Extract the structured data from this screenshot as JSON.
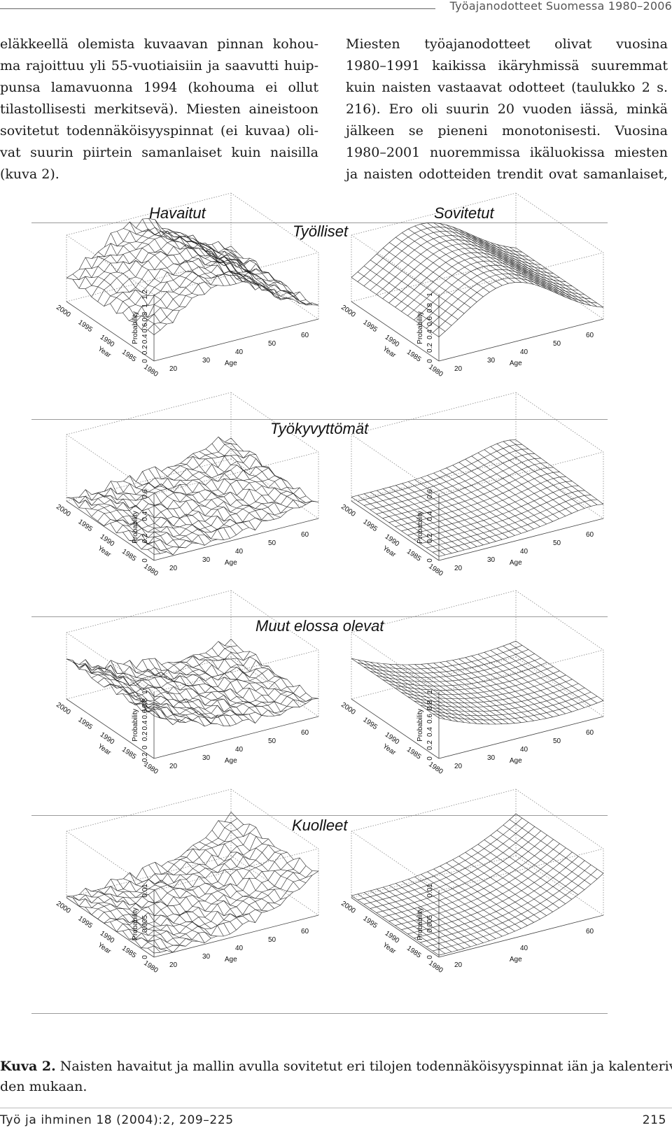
{
  "running_head": "Työajanodotteet Suomessa 1980–2006",
  "left_column": [
    "eläkkeellä olemista kuvaavan pinnan kohou-",
    "ma rajoittuu yli 55-vuotiaisiin ja saavutti huip-",
    "punsa lamavuonna 1994 (kohouma ei ollut",
    "tilastollisesti merkitsevä). Miesten aineistoon",
    "sovitetut todennäköisyyspinnat (ei kuvaa) oli-",
    "vat suurin piirtein samanlaiset kuin naisilla",
    "(kuva 2)."
  ],
  "right_column": [
    "Miesten työajanodotteet olivat vuosina",
    "1980–1991 kaikissa ikäryhmissä suuremmat",
    "kuin naisten vastaavat odotteet (taulukko 2 s.",
    "216). Ero oli suurin 20 vuoden iässä, minkä",
    "jälkeen se pieneni monotonisesti. Vuosina",
    "1980–2001 nuoremmissa ikäluokissa miesten",
    "ja naisten odotteiden trendit ovat samanlaiset,"
  ],
  "figure": {
    "column_titles": {
      "observed": "Havaitut",
      "fitted": "Sovitetut"
    },
    "rows": [
      {
        "title": "Työlliset",
        "observed": {
          "z_ticks": [
            "0",
            "0.2",
            "0.4",
            "0.6",
            "0.8",
            "1",
            "1.2"
          ],
          "shape": "employed",
          "noisy": true
        },
        "fitted": {
          "z_ticks": [
            "0",
            "0.2",
            "0.4",
            "0.6",
            "0.8",
            "1"
          ],
          "shape": "employed",
          "noisy": false
        }
      },
      {
        "title": "Työkyvyttömät",
        "observed": {
          "z_ticks": [
            "0",
            "0.2",
            "0.4",
            "0.6"
          ],
          "shape": "disabled",
          "noisy": true
        },
        "fitted": {
          "z_ticks": [
            "0",
            "0.2",
            "0.4",
            "0.6"
          ],
          "shape": "disabled",
          "noisy": false
        }
      },
      {
        "title": "Muut elossa olevat",
        "observed": {
          "z_ticks": [
            "-0.2",
            "0",
            "0.2",
            "0.4",
            "0.6",
            "0.8",
            "1"
          ],
          "shape": "other",
          "noisy": true
        },
        "fitted": {
          "z_ticks": [
            "0",
            "0.2",
            "0.4",
            "0.6",
            "0.8",
            "1"
          ],
          "shape": "other",
          "noisy": false
        }
      },
      {
        "title": "Kuolleet",
        "observed": {
          "z_ticks": [
            "0",
            "0.005",
            "0.01"
          ],
          "shape": "dead",
          "noisy": true
        },
        "fitted": {
          "z_ticks": [
            "0",
            "0.005",
            "0.01"
          ],
          "shape": "dead",
          "noisy": false
        }
      }
    ],
    "z_axis_label": "Probability",
    "year_axis_label": "Year",
    "year_ticks": [
      "2000",
      "1995",
      "1990",
      "1985",
      "1980"
    ],
    "age_axis_label": "Age",
    "age_ticks": [
      "20",
      "30",
      "40",
      "50",
      "60"
    ],
    "fitted_dead_age_ticks": [
      "20",
      "40",
      "60"
    ]
  },
  "caption": {
    "label": "Kuva 2.",
    "line1": " Naisten havaitut ja mallin avulla sovitetut eri tilojen todennäköisyyspinnat iän ja kalenterivuo-",
    "line2": "den mukaan."
  },
  "footer": {
    "citation": "Työ ja ihminen 18 (2004):2, 209–225",
    "page": "215"
  }
}
